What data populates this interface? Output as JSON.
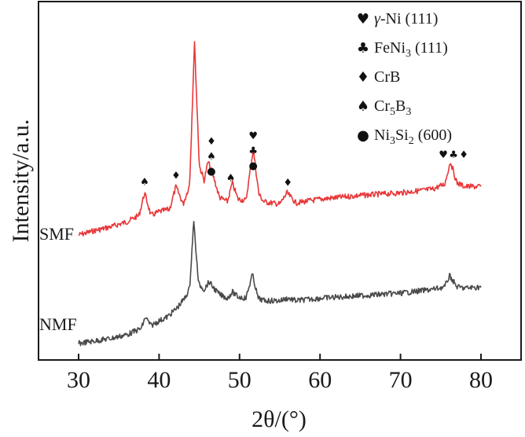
{
  "chart_data": {
    "type": "line",
    "title": "",
    "xlabel": "2θ/(°)",
    "ylabel": "Intensity/a.u.",
    "xlim": [
      25,
      85
    ],
    "x_ticks": [
      30,
      40,
      50,
      60,
      70,
      80
    ],
    "x_tick_labels": [
      "30",
      "40",
      "50",
      "60",
      "70",
      "80"
    ],
    "y_ticks_shown": false,
    "grid": false,
    "series": [
      {
        "name": "SMF",
        "color": "#e8383a",
        "points": [
          [
            30,
            0.45
          ],
          [
            32,
            0.52
          ],
          [
            34,
            0.58
          ],
          [
            36,
            0.66
          ],
          [
            37.5,
            0.76
          ],
          [
            38.2,
            1.12
          ],
          [
            39,
            0.76
          ],
          [
            40,
            0.82
          ],
          [
            41.3,
            0.86
          ],
          [
            42.1,
            1.22
          ],
          [
            43,
            0.94
          ],
          [
            43.8,
            1.25
          ],
          [
            44.4,
            3.52
          ],
          [
            45,
            1.55
          ],
          [
            45.6,
            1.32
          ],
          [
            46.1,
            1.62
          ],
          [
            46.8,
            1.36
          ],
          [
            47.5,
            1.05
          ],
          [
            48.5,
            0.98
          ],
          [
            49.1,
            1.28
          ],
          [
            49.8,
            1.02
          ],
          [
            50.8,
            1.0
          ],
          [
            51.7,
            1.82
          ],
          [
            52.4,
            1.1
          ],
          [
            53,
            0.98
          ],
          [
            55,
            0.94
          ],
          [
            55.9,
            1.12
          ],
          [
            57,
            0.96
          ],
          [
            60,
            1.02
          ],
          [
            65,
            1.08
          ],
          [
            70,
            1.12
          ],
          [
            74,
            1.18
          ],
          [
            75.5,
            1.26
          ],
          [
            76.2,
            1.62
          ],
          [
            77,
            1.28
          ],
          [
            78,
            1.22
          ],
          [
            80,
            1.22
          ]
        ],
        "peak_markers": [
          {
            "x": 38.2,
            "phases": [
              "Cr5B3"
            ]
          },
          {
            "x": 42.1,
            "phases": [
              "CrB"
            ]
          },
          {
            "x": 46.5,
            "phases": [
              "CrB",
              "Cr5B3",
              "Ni3Si2 (600)"
            ]
          },
          {
            "x": 48.9,
            "phases": [
              "Cr5B3"
            ]
          },
          {
            "x": 51.7,
            "phases": [
              "γ-Ni (111)",
              "FeNi3 (111)",
              "Ni3Si2 (600)"
            ]
          },
          {
            "x": 56.0,
            "phases": [
              "CrB"
            ]
          },
          {
            "x": 76.3,
            "phases": [
              "γ-Ni (111)",
              "FeNi3 (111)",
              "CrB"
            ]
          }
        ]
      },
      {
        "name": "NMF",
        "color": "#4a4a4a",
        "points": [
          [
            30,
            0.0
          ],
          [
            32,
            0.04
          ],
          [
            34,
            0.08
          ],
          [
            36,
            0.14
          ],
          [
            37.8,
            0.24
          ],
          [
            38.3,
            0.42
          ],
          [
            39,
            0.28
          ],
          [
            40,
            0.36
          ],
          [
            41,
            0.42
          ],
          [
            42.2,
            0.56
          ],
          [
            43.2,
            0.72
          ],
          [
            43.8,
            0.88
          ],
          [
            44.3,
            1.95
          ],
          [
            44.9,
            0.95
          ],
          [
            45.6,
            0.86
          ],
          [
            46.2,
            0.98
          ],
          [
            46.8,
            0.88
          ],
          [
            47.5,
            0.78
          ],
          [
            48.5,
            0.72
          ],
          [
            49.1,
            0.82
          ],
          [
            49.8,
            0.74
          ],
          [
            50.8,
            0.72
          ],
          [
            51.6,
            1.1
          ],
          [
            52.3,
            0.72
          ],
          [
            53,
            0.68
          ],
          [
            55,
            0.68
          ],
          [
            56,
            0.72
          ],
          [
            57,
            0.68
          ],
          [
            60,
            0.72
          ],
          [
            65,
            0.76
          ],
          [
            70,
            0.8
          ],
          [
            74,
            0.86
          ],
          [
            75.5,
            0.9
          ],
          [
            76.1,
            1.08
          ],
          [
            77,
            0.9
          ],
          [
            78,
            0.88
          ],
          [
            80,
            0.9
          ]
        ]
      }
    ]
  },
  "legend": {
    "placement": "top-right",
    "items": [
      {
        "symbol": "heart-icon",
        "glyph": "♥",
        "label_main": "γ-Ni (111)",
        "formula_parts": []
      },
      {
        "symbol": "club-icon",
        "glyph": "♣",
        "formula_parts": [
          [
            "FeNi",
            false
          ],
          [
            "3",
            true
          ],
          [
            " (111)",
            false
          ]
        ]
      },
      {
        "symbol": "diamond-icon",
        "glyph": "♦",
        "formula_parts": [
          [
            "CrB",
            false
          ]
        ]
      },
      {
        "symbol": "spade-icon",
        "glyph": "♠",
        "formula_parts": [
          [
            "Cr",
            false
          ],
          [
            "5",
            true
          ],
          [
            "B",
            false
          ],
          [
            "3",
            true
          ]
        ]
      },
      {
        "symbol": "dot-icon",
        "glyph": "●",
        "formula_parts": [
          [
            "Ni",
            false
          ],
          [
            "3",
            true
          ],
          [
            "Si",
            false
          ],
          [
            "2",
            true
          ],
          [
            " (600)",
            false
          ]
        ]
      }
    ]
  },
  "phase_glyphs": {
    "γ-Ni (111)": "♥",
    "FeNi3 (111)": "♣",
    "CrB": "♦",
    "Cr5B3": "♠",
    "Ni3Si2 (600)": "●"
  }
}
